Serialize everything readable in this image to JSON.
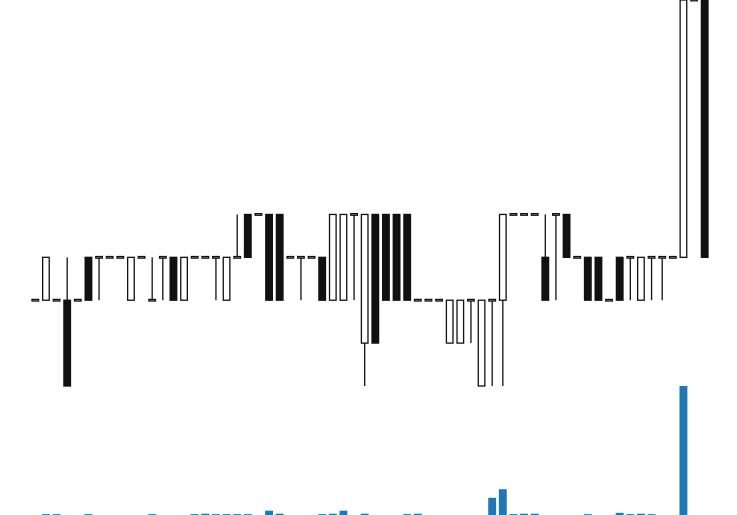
{
  "chart_data": {
    "type": "candlestick",
    "title": "",
    "xlabel": "",
    "ylabel": "",
    "axes_visible": false,
    "grid": false,
    "legend": "none",
    "colors": {
      "up_body": "#ffffff",
      "down_body": "#111111",
      "wick": "#111111",
      "volume": "#1f77b4",
      "background": "#ffffff"
    },
    "price_range": [
      -2,
      7
    ],
    "volume_range": [
      0,
      30
    ],
    "candles": [
      {
        "index": 0,
        "open": 0,
        "high": 0,
        "low": 0,
        "close": 0,
        "volume": 0
      },
      {
        "index": 1,
        "open": 0,
        "high": 1,
        "low": 0,
        "close": 1,
        "volume": 0.2
      },
      {
        "index": 2,
        "open": 0,
        "high": 0,
        "low": 0,
        "close": 0,
        "volume": 0.2
      },
      {
        "index": 3,
        "open": 0,
        "high": 1,
        "low": -2,
        "close": -2,
        "volume": 0
      },
      {
        "index": 4,
        "open": 0,
        "high": 0,
        "low": 0,
        "close": 0,
        "volume": 0
      },
      {
        "index": 5,
        "open": 1,
        "high": 1,
        "low": 0,
        "close": 0,
        "volume": 0.2
      },
      {
        "index": 6,
        "open": 1,
        "high": 1,
        "low": 0,
        "close": 1,
        "volume": 0
      },
      {
        "index": 7,
        "open": 1,
        "high": 1,
        "low": 1,
        "close": 1,
        "volume": 0
      },
      {
        "index": 8,
        "open": 1,
        "high": 1,
        "low": 1,
        "close": 1,
        "volume": 0
      },
      {
        "index": 9,
        "open": 0,
        "high": 1,
        "low": 0,
        "close": 1,
        "volume": 0
      },
      {
        "index": 10,
        "open": 1,
        "high": 1,
        "low": 1,
        "close": 1,
        "volume": 0
      },
      {
        "index": 11,
        "open": 0,
        "high": 1,
        "low": 0,
        "close": 0,
        "volume": 0.2
      },
      {
        "index": 12,
        "open": 1,
        "high": 1,
        "low": 0,
        "close": 1,
        "volume": 0
      },
      {
        "index": 13,
        "open": 1,
        "high": 1,
        "low": 0,
        "close": 0,
        "volume": 0
      },
      {
        "index": 14,
        "open": 0,
        "high": 1,
        "low": 0,
        "close": 1,
        "volume": 0
      },
      {
        "index": 15,
        "open": 1,
        "high": 1,
        "low": 1,
        "close": 1,
        "volume": 0.2
      },
      {
        "index": 16,
        "open": 1,
        "high": 1,
        "low": 1,
        "close": 1,
        "volume": 0.3
      },
      {
        "index": 17,
        "open": 1,
        "high": 1,
        "low": 0,
        "close": 1,
        "volume": 0.2
      },
      {
        "index": 18,
        "open": 0,
        "high": 1,
        "low": 0,
        "close": 1,
        "volume": 0.2
      },
      {
        "index": 19,
        "open": 1,
        "high": 2,
        "low": 1,
        "close": 1,
        "volume": 0.2
      },
      {
        "index": 20,
        "open": 2,
        "high": 2,
        "low": 1,
        "close": 1,
        "volume": 0.2
      },
      {
        "index": 21,
        "open": 2,
        "high": 2,
        "low": 2,
        "close": 2,
        "volume": 0
      },
      {
        "index": 22,
        "open": 2,
        "high": 2,
        "low": 0,
        "close": 0,
        "volume": 1
      },
      {
        "index": 23,
        "open": 2,
        "high": 2,
        "low": 0,
        "close": 0,
        "volume": 0.3
      },
      {
        "index": 24,
        "open": 1,
        "high": 1,
        "low": 1,
        "close": 1,
        "volume": 0
      },
      {
        "index": 25,
        "open": 1,
        "high": 1,
        "low": 0,
        "close": 1,
        "volume": 0
      },
      {
        "index": 26,
        "open": 1,
        "high": 1,
        "low": 1,
        "close": 1,
        "volume": 0
      },
      {
        "index": 27,
        "open": 1,
        "high": 1,
        "low": 0,
        "close": 0,
        "volume": 0.2
      },
      {
        "index": 28,
        "open": 0,
        "high": 2,
        "low": 0,
        "close": 2,
        "volume": 0.3
      },
      {
        "index": 29,
        "open": 0,
        "high": 2,
        "low": 0,
        "close": 2,
        "volume": 1
      },
      {
        "index": 30,
        "open": 2,
        "high": 2,
        "low": 0,
        "close": 2,
        "volume": 0
      },
      {
        "index": 31,
        "open": -1,
        "high": 2,
        "low": -2,
        "close": 2,
        "volume": 0.3
      },
      {
        "index": 32,
        "open": 2,
        "high": 2,
        "low": -1,
        "close": -1,
        "volume": 0
      },
      {
        "index": 33,
        "open": 2,
        "high": 2,
        "low": 0,
        "close": 0,
        "volume": 0
      },
      {
        "index": 34,
        "open": 2,
        "high": 2,
        "low": 0,
        "close": 0,
        "volume": 0
      },
      {
        "index": 35,
        "open": 2,
        "high": 2,
        "low": 0,
        "close": 0,
        "volume": 0.2
      },
      {
        "index": 36,
        "open": 0,
        "high": 0,
        "low": 0,
        "close": 0,
        "volume": 0.3
      },
      {
        "index": 37,
        "open": 0,
        "high": 0,
        "low": 0,
        "close": 0,
        "volume": 0
      },
      {
        "index": 38,
        "open": 0,
        "high": 0,
        "low": 0,
        "close": 0,
        "volume": 0
      },
      {
        "index": 39,
        "open": -1,
        "high": 0,
        "low": -1,
        "close": 0,
        "volume": 0
      },
      {
        "index": 40,
        "open": -1,
        "high": 0,
        "low": -1,
        "close": 0,
        "volume": 0
      },
      {
        "index": 41,
        "open": 0,
        "high": 0,
        "low": -1,
        "close": 0,
        "volume": 0
      },
      {
        "index": 42,
        "open": -2,
        "high": 0,
        "low": -2,
        "close": 0,
        "volume": 0
      },
      {
        "index": 43,
        "open": 0,
        "high": 0,
        "low": -2,
        "close": 0,
        "volume": 4
      },
      {
        "index": 44,
        "open": 0,
        "high": 2,
        "low": -2,
        "close": 2,
        "volume": 6
      },
      {
        "index": 45,
        "open": 2,
        "high": 2,
        "low": 2,
        "close": 2,
        "volume": 0.2
      },
      {
        "index": 46,
        "open": 2,
        "high": 2,
        "low": 2,
        "close": 2,
        "volume": 0.3
      },
      {
        "index": 47,
        "open": 2,
        "high": 2,
        "low": 2,
        "close": 2,
        "volume": 0.3
      },
      {
        "index": 48,
        "open": 1,
        "high": 2,
        "low": 0,
        "close": 0,
        "volume": 0
      },
      {
        "index": 49,
        "open": 2,
        "high": 2,
        "low": 0,
        "close": 2,
        "volume": 0
      },
      {
        "index": 50,
        "open": 2,
        "high": 2,
        "low": 1,
        "close": 1,
        "volume": 0
      },
      {
        "index": 51,
        "open": 1,
        "high": 1,
        "low": 1,
        "close": 1,
        "volume": 0
      },
      {
        "index": 52,
        "open": 1,
        "high": 1,
        "low": 0,
        "close": 0,
        "volume": 0.2
      },
      {
        "index": 53,
        "open": 1,
        "high": 1,
        "low": 0,
        "close": 0,
        "volume": 0
      },
      {
        "index": 54,
        "open": 0,
        "high": 0,
        "low": 0,
        "close": 0,
        "volume": 0
      },
      {
        "index": 55,
        "open": 1,
        "high": 1,
        "low": 0,
        "close": 0,
        "volume": 0.5
      },
      {
        "index": 56,
        "open": 1,
        "high": 1,
        "low": 0,
        "close": 1,
        "volume": 0.2
      },
      {
        "index": 57,
        "open": 0,
        "high": 1,
        "low": 0,
        "close": 1,
        "volume": 0.3
      },
      {
        "index": 58,
        "open": 1,
        "high": 1,
        "low": 0,
        "close": 1,
        "volume": 0.2
      },
      {
        "index": 59,
        "open": 1,
        "high": 1,
        "low": 0,
        "close": 1,
        "volume": 0
      },
      {
        "index": 60,
        "open": 1,
        "high": 1,
        "low": 1,
        "close": 1,
        "volume": 0
      },
      {
        "index": 61,
        "open": 1,
        "high": 7,
        "low": 1,
        "close": 7,
        "volume": 30
      },
      {
        "index": 62,
        "open": 7,
        "high": 7,
        "low": 7,
        "close": 7,
        "volume": 0
      },
      {
        "index": 63,
        "open": 7,
        "high": 7,
        "low": 1,
        "close": 1,
        "volume": 0
      }
    ]
  }
}
